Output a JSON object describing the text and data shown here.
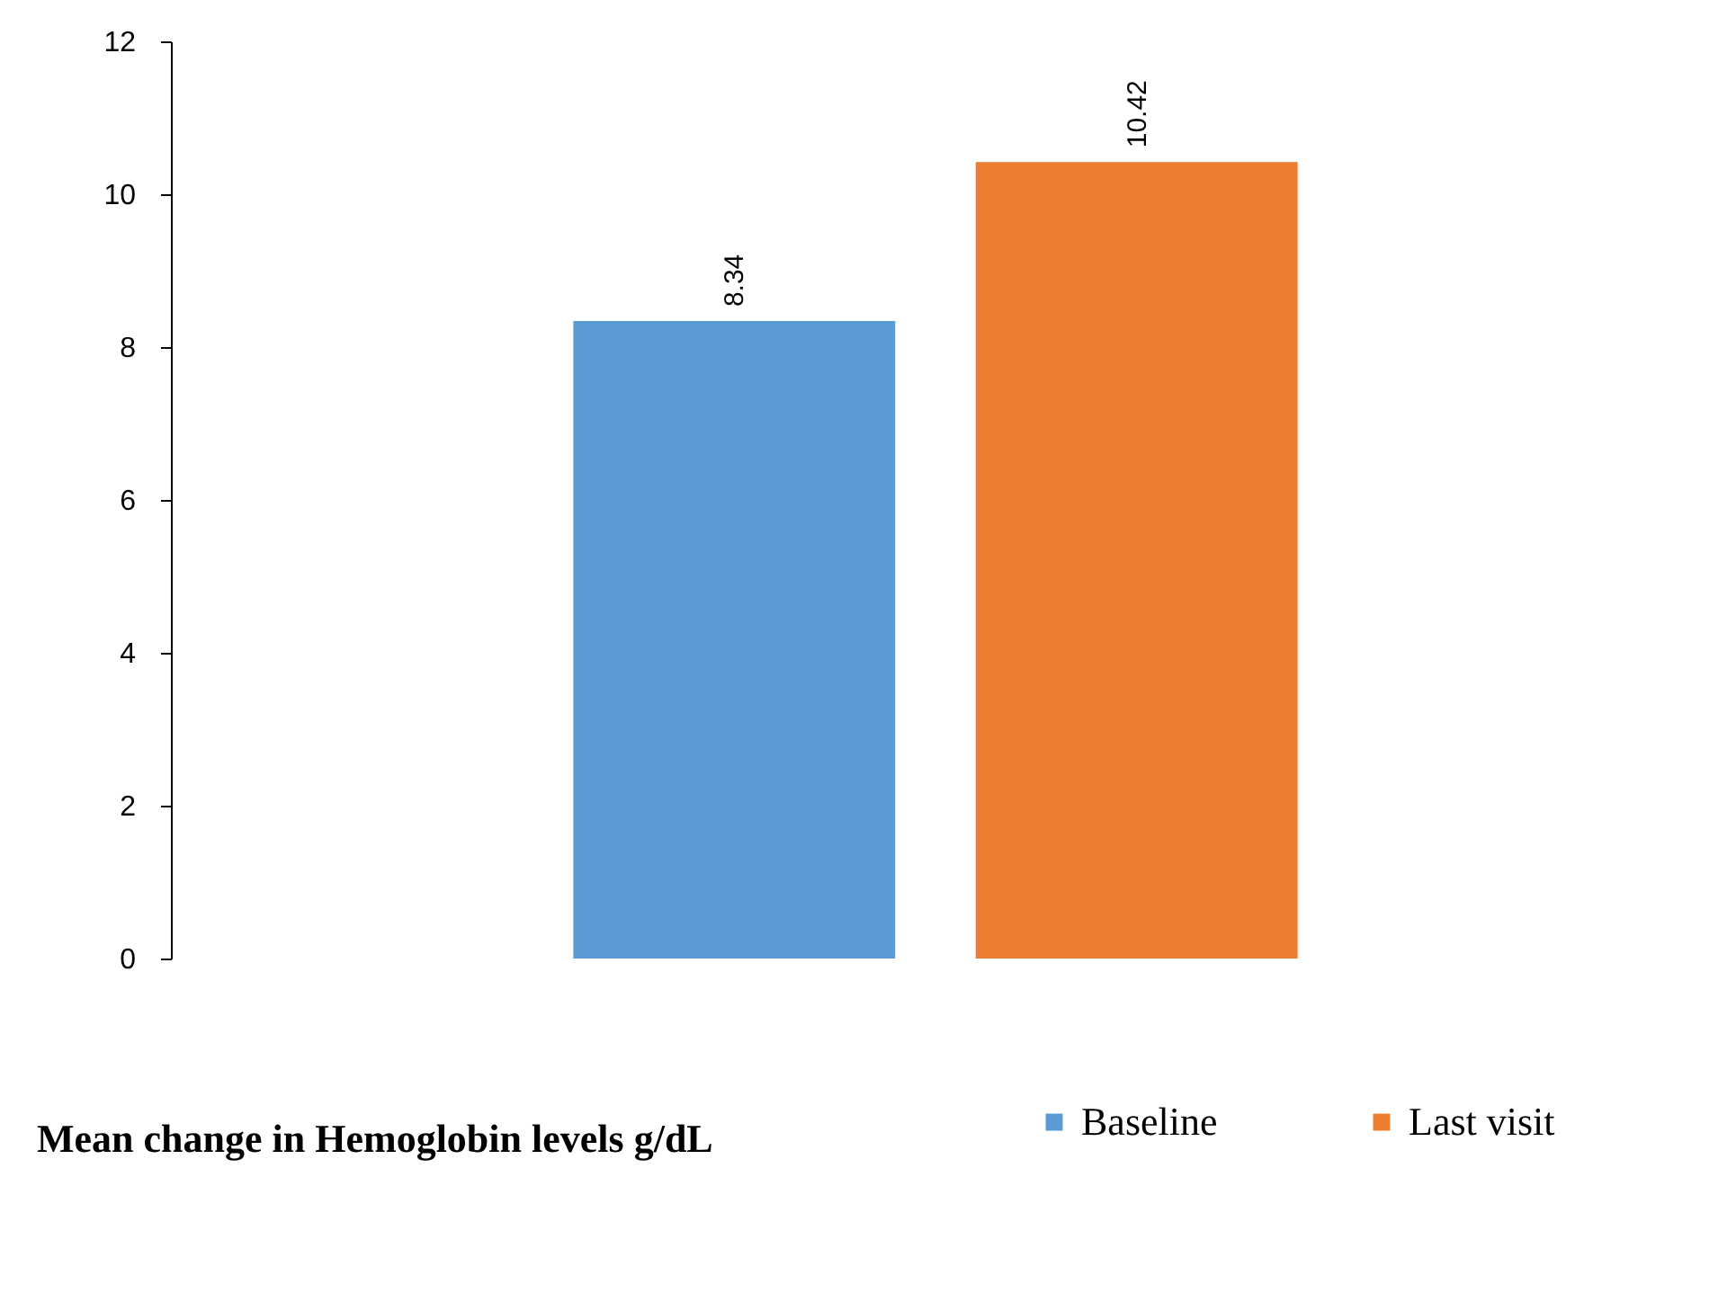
{
  "chart_data": {
    "type": "bar",
    "xlabel": "Mean change in Hemoglobin levels g/dL",
    "categories": [
      null
    ],
    "series": [
      {
        "name": "Baseline",
        "color": "#5b9bd5",
        "values": [
          8.34
        ]
      },
      {
        "name": "Last visit",
        "color": "#ed7d31",
        "values": [
          10.42
        ]
      }
    ],
    "ylim": [
      0,
      12
    ],
    "yticks": [
      0,
      2,
      4,
      6,
      8,
      10,
      12
    ],
    "data_labels": true,
    "legend": "bottom right",
    "tick_labels": "y"
  }
}
